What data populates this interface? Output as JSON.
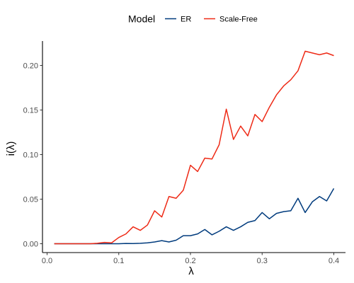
{
  "chart_data": {
    "type": "line",
    "xlabel": "λ",
    "ylabel": "i(λ)",
    "xlim": [
      0,
      0.41
    ],
    "ylim": [
      0,
      0.22
    ],
    "xticks": [
      0.0,
      0.1,
      0.2,
      0.3,
      0.4
    ],
    "xtick_labels": [
      "0.0",
      "0.1",
      "0.2",
      "0.3",
      "0.4"
    ],
    "yticks": [
      0.0,
      0.05,
      0.1,
      0.15,
      0.2
    ],
    "ytick_labels": [
      "0.00",
      "0.05",
      "0.10",
      "0.15",
      "0.20"
    ],
    "grid": false,
    "legend": {
      "title": "Model",
      "position": "top"
    },
    "x": [
      0.01,
      0.02,
      0.03,
      0.04,
      0.05,
      0.06,
      0.07,
      0.08,
      0.09,
      0.1,
      0.11,
      0.12,
      0.13,
      0.14,
      0.15,
      0.16,
      0.17,
      0.18,
      0.19,
      0.2,
      0.21,
      0.22,
      0.23,
      0.24,
      0.25,
      0.26,
      0.27,
      0.28,
      0.29,
      0.3,
      0.31,
      0.32,
      0.33,
      0.34,
      0.35,
      0.36,
      0.37,
      0.38,
      0.39,
      0.4
    ],
    "series": [
      {
        "name": "ER",
        "color": "#003b7d",
        "values": [
          0,
          0,
          0,
          0,
          0,
          0,
          0,
          0,
          0,
          0,
          0.0003,
          0.0002,
          0.0005,
          0.001,
          0.002,
          0.0035,
          0.002,
          0.004,
          0.009,
          0.009,
          0.011,
          0.016,
          0.01,
          0.014,
          0.019,
          0.015,
          0.019,
          0.024,
          0.026,
          0.035,
          0.028,
          0.034,
          0.036,
          0.037,
          0.051,
          0.035,
          0.047,
          0.053,
          0.048,
          0.062
        ]
      },
      {
        "name": "Scale-Free",
        "color": "#ee2a16",
        "values": [
          0,
          0,
          0,
          0,
          0,
          0,
          0.0005,
          0.0015,
          0.001,
          0.007,
          0.011,
          0.019,
          0.015,
          0.021,
          0.037,
          0.03,
          0.053,
          0.051,
          0.06,
          0.088,
          0.081,
          0.096,
          0.095,
          0.111,
          0.151,
          0.117,
          0.132,
          0.121,
          0.145,
          0.137,
          0.153,
          0.167,
          0.177,
          0.184,
          0.194,
          0.216,
          0.214,
          0.212,
          0.214,
          0.211
        ]
      }
    ]
  }
}
